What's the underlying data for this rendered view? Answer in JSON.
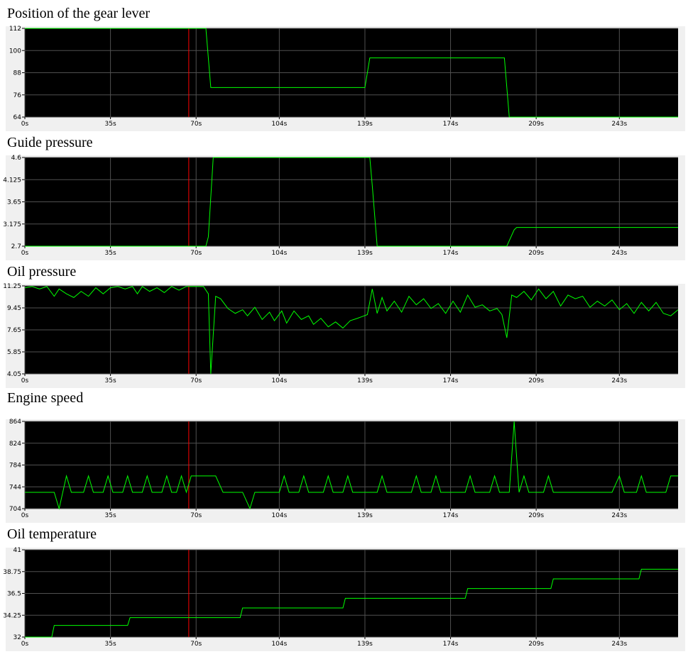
{
  "chart_data": [
    {
      "type": "line",
      "title": "Position of the gear lever",
      "x": [
        0,
        74,
        76,
        139,
        141,
        196,
        198,
        267
      ],
      "values": [
        112,
        112,
        80,
        80,
        96,
        96,
        64,
        64
      ],
      "color": "#00ff00",
      "background": "#000000",
      "grid": true,
      "xlim": [
        0,
        267
      ],
      "xticks": [
        {
          "value": 0,
          "label": "0s"
        },
        {
          "value": 35,
          "label": "35s"
        },
        {
          "value": 70,
          "label": "70s"
        },
        {
          "value": 104,
          "label": "104s"
        },
        {
          "value": 139,
          "label": "139s"
        },
        {
          "value": 174,
          "label": "174s"
        },
        {
          "value": 209,
          "label": "209s"
        },
        {
          "value": 243,
          "label": "243s"
        }
      ],
      "ylim": [
        64,
        112
      ],
      "yticks": [
        64,
        76,
        88,
        100,
        112
      ],
      "marker_x": 67,
      "marker_color": "#ff0000"
    },
    {
      "type": "line",
      "title": "Guide pressure",
      "x": [
        0,
        74,
        75,
        77,
        141,
        142,
        144,
        197,
        200,
        201,
        267
      ],
      "values": [
        2.7,
        2.7,
        2.9,
        4.6,
        4.6,
        4.0,
        2.7,
        2.7,
        3.05,
        3.1,
        3.1
      ],
      "color": "#00ff00",
      "background": "#000000",
      "grid": true,
      "xlim": [
        0,
        267
      ],
      "xticks": [
        {
          "value": 0,
          "label": "0s"
        },
        {
          "value": 35,
          "label": "35s"
        },
        {
          "value": 70,
          "label": "70s"
        },
        {
          "value": 104,
          "label": "104s"
        },
        {
          "value": 139,
          "label": "139s"
        },
        {
          "value": 174,
          "label": "174s"
        },
        {
          "value": 209,
          "label": "209s"
        },
        {
          "value": 243,
          "label": "243s"
        }
      ],
      "ylim": [
        2.7,
        4.6
      ],
      "yticks": [
        2.7,
        3.175,
        3.65,
        4.125,
        4.6
      ],
      "marker_x": 67,
      "marker_color": "#ff0000"
    },
    {
      "type": "line",
      "title": "Oil pressure",
      "x": [
        0,
        3,
        6,
        9,
        12,
        14,
        17,
        20,
        23,
        26,
        29,
        32,
        35,
        38,
        41,
        44,
        46,
        48,
        51,
        54,
        57,
        60,
        63,
        66,
        70,
        73,
        75,
        76,
        78,
        80,
        83,
        86,
        89,
        91,
        94,
        97,
        100,
        102,
        105,
        107,
        110,
        113,
        116,
        118,
        121,
        124,
        127,
        130,
        133,
        136,
        140,
        142,
        144,
        146,
        148,
        151,
        154,
        157,
        160,
        163,
        166,
        169,
        172,
        175,
        178,
        181,
        184,
        187,
        190,
        193,
        195,
        197,
        199,
        201,
        204,
        207,
        210,
        213,
        216,
        219,
        222,
        225,
        228,
        231,
        234,
        237,
        240,
        243,
        246,
        249,
        252,
        255,
        258,
        261,
        264,
        267
      ],
      "values": [
        11.1,
        11.2,
        11.0,
        11.2,
        10.4,
        11.0,
        10.6,
        10.3,
        10.8,
        10.4,
        11.1,
        10.6,
        11.1,
        11.2,
        11.0,
        11.2,
        10.6,
        11.2,
        10.8,
        11.1,
        10.7,
        11.2,
        10.9,
        11.2,
        11.2,
        11.2,
        10.6,
        4.05,
        10.4,
        10.2,
        9.4,
        9.0,
        9.3,
        8.8,
        9.5,
        8.5,
        9.1,
        8.4,
        9.2,
        8.2,
        9.2,
        8.5,
        8.8,
        8.1,
        8.6,
        7.9,
        8.3,
        7.8,
        8.4,
        8.6,
        8.9,
        11.0,
        9.0,
        10.3,
        9.2,
        10.0,
        9.1,
        10.4,
        9.7,
        10.2,
        9.4,
        9.8,
        9.0,
        10.0,
        9.1,
        10.5,
        9.5,
        9.7,
        9.2,
        9.4,
        8.9,
        7.0,
        10.5,
        10.3,
        10.8,
        10.1,
        11.0,
        10.2,
        10.8,
        9.6,
        10.5,
        10.2,
        10.4,
        9.5,
        10.0,
        9.6,
        10.1,
        9.3,
        9.8,
        9.0,
        9.9,
        9.2,
        9.9,
        9.0,
        8.8,
        9.3
      ],
      "color": "#00ff00",
      "background": "#000000",
      "grid": true,
      "xlim": [
        0,
        267
      ],
      "xticks": [
        {
          "value": 0,
          "label": "0s"
        },
        {
          "value": 35,
          "label": "35s"
        },
        {
          "value": 70,
          "label": "70s"
        },
        {
          "value": 104,
          "label": "104s"
        },
        {
          "value": 139,
          "label": "139s"
        },
        {
          "value": 174,
          "label": "174s"
        },
        {
          "value": 209,
          "label": "209s"
        },
        {
          "value": 243,
          "label": "243s"
        }
      ],
      "ylim": [
        4.05,
        11.25
      ],
      "yticks": [
        4.05,
        5.85,
        7.65,
        9.45,
        11.25
      ],
      "marker_x": 67,
      "marker_color": "#ff0000"
    },
    {
      "type": "line",
      "title": "Engine speed",
      "x": [
        0,
        12,
        14,
        17,
        19,
        24,
        26,
        28,
        32,
        34,
        36,
        40,
        42,
        44,
        48,
        50,
        52,
        56,
        58,
        60,
        62,
        64,
        66,
        68,
        78,
        81,
        89,
        92,
        94,
        104,
        106,
        108,
        112,
        114,
        116,
        122,
        124,
        126,
        130,
        132,
        134,
        144,
        146,
        148,
        158,
        160,
        162,
        166,
        168,
        170,
        180,
        182,
        184,
        190,
        192,
        194,
        198,
        200,
        202,
        204,
        206,
        212,
        214,
        216,
        240,
        243,
        245,
        250,
        252,
        254,
        262,
        264,
        267
      ],
      "values": [
        734,
        734,
        704,
        764,
        734,
        734,
        764,
        734,
        734,
        764,
        734,
        734,
        764,
        734,
        734,
        764,
        734,
        734,
        764,
        734,
        734,
        764,
        734,
        764,
        764,
        734,
        734,
        704,
        734,
        734,
        764,
        734,
        734,
        764,
        734,
        734,
        764,
        734,
        734,
        764,
        734,
        734,
        764,
        734,
        734,
        764,
        734,
        734,
        764,
        734,
        734,
        764,
        734,
        734,
        764,
        734,
        734,
        864,
        734,
        764,
        734,
        734,
        764,
        734,
        734,
        764,
        734,
        734,
        764,
        734,
        734,
        764,
        764
      ],
      "color": "#00ff00",
      "background": "#000000",
      "grid": true,
      "xlim": [
        0,
        267
      ],
      "xticks": [
        {
          "value": 0,
          "label": "0s"
        },
        {
          "value": 35,
          "label": "35s"
        },
        {
          "value": 70,
          "label": "70s"
        },
        {
          "value": 104,
          "label": "104s"
        },
        {
          "value": 139,
          "label": "139s"
        },
        {
          "value": 174,
          "label": "174s"
        },
        {
          "value": 209,
          "label": "209s"
        },
        {
          "value": 243,
          "label": "243s"
        }
      ],
      "ylim": [
        704,
        864
      ],
      "yticks": [
        704,
        744,
        784,
        824,
        864
      ],
      "marker_x": 67,
      "marker_color": "#ff0000"
    },
    {
      "type": "line",
      "title": "Oil temperature",
      "x": [
        0,
        11,
        12,
        42,
        43,
        88,
        89,
        130,
        131,
        180,
        181,
        215,
        216,
        251,
        252,
        267
      ],
      "values": [
        32,
        32,
        33.2,
        33.2,
        34,
        34,
        35,
        35,
        36,
        36,
        37,
        37,
        38,
        38,
        39,
        39
      ],
      "color": "#00ff00",
      "background": "#000000",
      "grid": true,
      "xlim": [
        0,
        267
      ],
      "xticks": [
        {
          "value": 0,
          "label": "0s"
        },
        {
          "value": 35,
          "label": "35s"
        },
        {
          "value": 70,
          "label": "70s"
        },
        {
          "value": 104,
          "label": "104s"
        },
        {
          "value": 139,
          "label": "139s"
        },
        {
          "value": 174,
          "label": "174s"
        },
        {
          "value": 209,
          "label": "209s"
        },
        {
          "value": 243,
          "label": "243s"
        }
      ],
      "ylim": [
        32,
        41
      ],
      "yticks": [
        32,
        34.25,
        36.5,
        38.75,
        41
      ],
      "marker_x": 67,
      "marker_color": "#ff0000"
    }
  ]
}
